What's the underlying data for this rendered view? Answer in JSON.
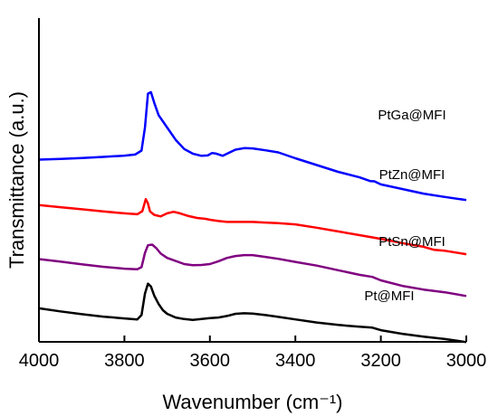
{
  "chart_data": {
    "type": "line",
    "title": "",
    "xlabel": "Wavenumber (cm⁻¹)",
    "ylabel": "Transmittance (a.u.)",
    "xlim": [
      4000,
      3000
    ],
    "x_reversed": true,
    "xticks": [
      "4000",
      "3800",
      "3600",
      "3400",
      "3200",
      "3000"
    ],
    "grid": false,
    "legend": "inline labels",
    "series": [
      {
        "name": "PtGa@MFI",
        "color": "#0000ff",
        "points": [
          [
            4000,
            -0.45
          ],
          [
            3950,
            -0.2
          ],
          [
            3900,
            0.1
          ],
          [
            3850,
            0.45
          ],
          [
            3800,
            0.85
          ],
          [
            3775,
            1.2
          ],
          [
            3760,
            2.5
          ],
          [
            3752,
            10
          ],
          [
            3745,
            21
          ],
          [
            3738,
            21.5
          ],
          [
            3730,
            18
          ],
          [
            3720,
            14
          ],
          [
            3700,
            10
          ],
          [
            3680,
            6
          ],
          [
            3660,
            3
          ],
          [
            3640,
            1.5
          ],
          [
            3620,
            0.8
          ],
          [
            3605,
            0.9
          ],
          [
            3595,
            1.7
          ],
          [
            3585,
            1.5
          ],
          [
            3570,
            0.8
          ],
          [
            3555,
            1.8
          ],
          [
            3540,
            2.8
          ],
          [
            3520,
            3.3
          ],
          [
            3500,
            3.2
          ],
          [
            3470,
            2.6
          ],
          [
            3440,
            1.9
          ],
          [
            3400,
            0
          ],
          [
            3350,
            -2.2
          ],
          [
            3300,
            -4.4
          ],
          [
            3250,
            -6.2
          ],
          [
            3225,
            -7.4
          ],
          [
            3215,
            -7.5
          ],
          [
            3200,
            -8.5
          ],
          [
            3150,
            -10
          ],
          [
            3100,
            -11.5
          ],
          [
            3050,
            -12.6
          ],
          [
            3000,
            -13.6
          ]
        ]
      },
      {
        "name": "PtZn@MFI",
        "color": "#ff0000",
        "points": [
          [
            4000,
            -15.2
          ],
          [
            3950,
            -15.9
          ],
          [
            3900,
            -16.6
          ],
          [
            3850,
            -17.3
          ],
          [
            3800,
            -17.9
          ],
          [
            3770,
            -18.2
          ],
          [
            3758,
            -17.2
          ],
          [
            3750,
            -13.3
          ],
          [
            3745,
            -14.7
          ],
          [
            3740,
            -17.3
          ],
          [
            3730,
            -18.4
          ],
          [
            3715,
            -18.9
          ],
          [
            3700,
            -17.9
          ],
          [
            3685,
            -17.4
          ],
          [
            3670,
            -17.9
          ],
          [
            3650,
            -18.8
          ],
          [
            3630,
            -19.4
          ],
          [
            3610,
            -19.7
          ],
          [
            3600,
            -20
          ],
          [
            3580,
            -20.4
          ],
          [
            3560,
            -20.7
          ],
          [
            3540,
            -20.7
          ],
          [
            3520,
            -20.7
          ],
          [
            3500,
            -20.7
          ],
          [
            3470,
            -20.9
          ],
          [
            3440,
            -21.1
          ],
          [
            3400,
            -21.5
          ],
          [
            3350,
            -22.6
          ],
          [
            3300,
            -23.8
          ],
          [
            3250,
            -25
          ],
          [
            3200,
            -26.2
          ],
          [
            3150,
            -27.6
          ],
          [
            3100,
            -28.8
          ],
          [
            3075,
            -29.8
          ],
          [
            3050,
            -30.1
          ],
          [
            3000,
            -31.2
          ]
        ]
      },
      {
        "name": "PtSn@MFI",
        "color": "#800080",
        "points": [
          [
            4000,
            -32.8
          ],
          [
            3950,
            -33.6
          ],
          [
            3900,
            -34.5
          ],
          [
            3850,
            -35.3
          ],
          [
            3800,
            -35.9
          ],
          [
            3770,
            -36.1
          ],
          [
            3760,
            -35.4
          ],
          [
            3752,
            -30.8
          ],
          [
            3745,
            -28.3
          ],
          [
            3735,
            -28.1
          ],
          [
            3725,
            -29.3
          ],
          [
            3715,
            -31
          ],
          [
            3700,
            -32.4
          ],
          [
            3680,
            -33.4
          ],
          [
            3660,
            -34.4
          ],
          [
            3640,
            -34.8
          ],
          [
            3620,
            -34.7
          ],
          [
            3600,
            -34.4
          ],
          [
            3580,
            -33.5
          ],
          [
            3560,
            -32.4
          ],
          [
            3540,
            -31.8
          ],
          [
            3520,
            -31.5
          ],
          [
            3500,
            -31.5
          ],
          [
            3470,
            -32.1
          ],
          [
            3440,
            -32.7
          ],
          [
            3400,
            -33.7
          ],
          [
            3350,
            -34.9
          ],
          [
            3300,
            -36.4
          ],
          [
            3250,
            -37.9
          ],
          [
            3220,
            -38.6
          ],
          [
            3200,
            -39.7
          ],
          [
            3150,
            -41.5
          ],
          [
            3100,
            -42.7
          ],
          [
            3050,
            -43.6
          ],
          [
            3000,
            -44.8
          ]
        ]
      },
      {
        "name": "Pt@MFI",
        "color": "#000000",
        "points": [
          [
            4000,
            -48.8
          ],
          [
            3950,
            -49.8
          ],
          [
            3900,
            -50.7
          ],
          [
            3850,
            -51.5
          ],
          [
            3800,
            -52.1
          ],
          [
            3770,
            -52.4
          ],
          [
            3760,
            -51
          ],
          [
            3752,
            -44
          ],
          [
            3745,
            -40.8
          ],
          [
            3738,
            -41.7
          ],
          [
            3730,
            -44.7
          ],
          [
            3720,
            -47.4
          ],
          [
            3710,
            -49.4
          ],
          [
            3700,
            -50.6
          ],
          [
            3680,
            -51.8
          ],
          [
            3660,
            -52.3
          ],
          [
            3640,
            -52.6
          ],
          [
            3620,
            -52.3
          ],
          [
            3600,
            -52
          ],
          [
            3580,
            -51.8
          ],
          [
            3560,
            -51.3
          ],
          [
            3540,
            -50.6
          ],
          [
            3520,
            -50.4
          ],
          [
            3500,
            -50.5
          ],
          [
            3470,
            -51
          ],
          [
            3440,
            -51.6
          ],
          [
            3400,
            -52.4
          ],
          [
            3350,
            -53.4
          ],
          [
            3300,
            -54.2
          ],
          [
            3250,
            -54.8
          ],
          [
            3220,
            -55.1
          ],
          [
            3200,
            -55.9
          ],
          [
            3150,
            -57.1
          ],
          [
            3100,
            -58
          ],
          [
            3050,
            -58.8
          ],
          [
            3000,
            -59.8
          ]
        ]
      }
    ]
  }
}
